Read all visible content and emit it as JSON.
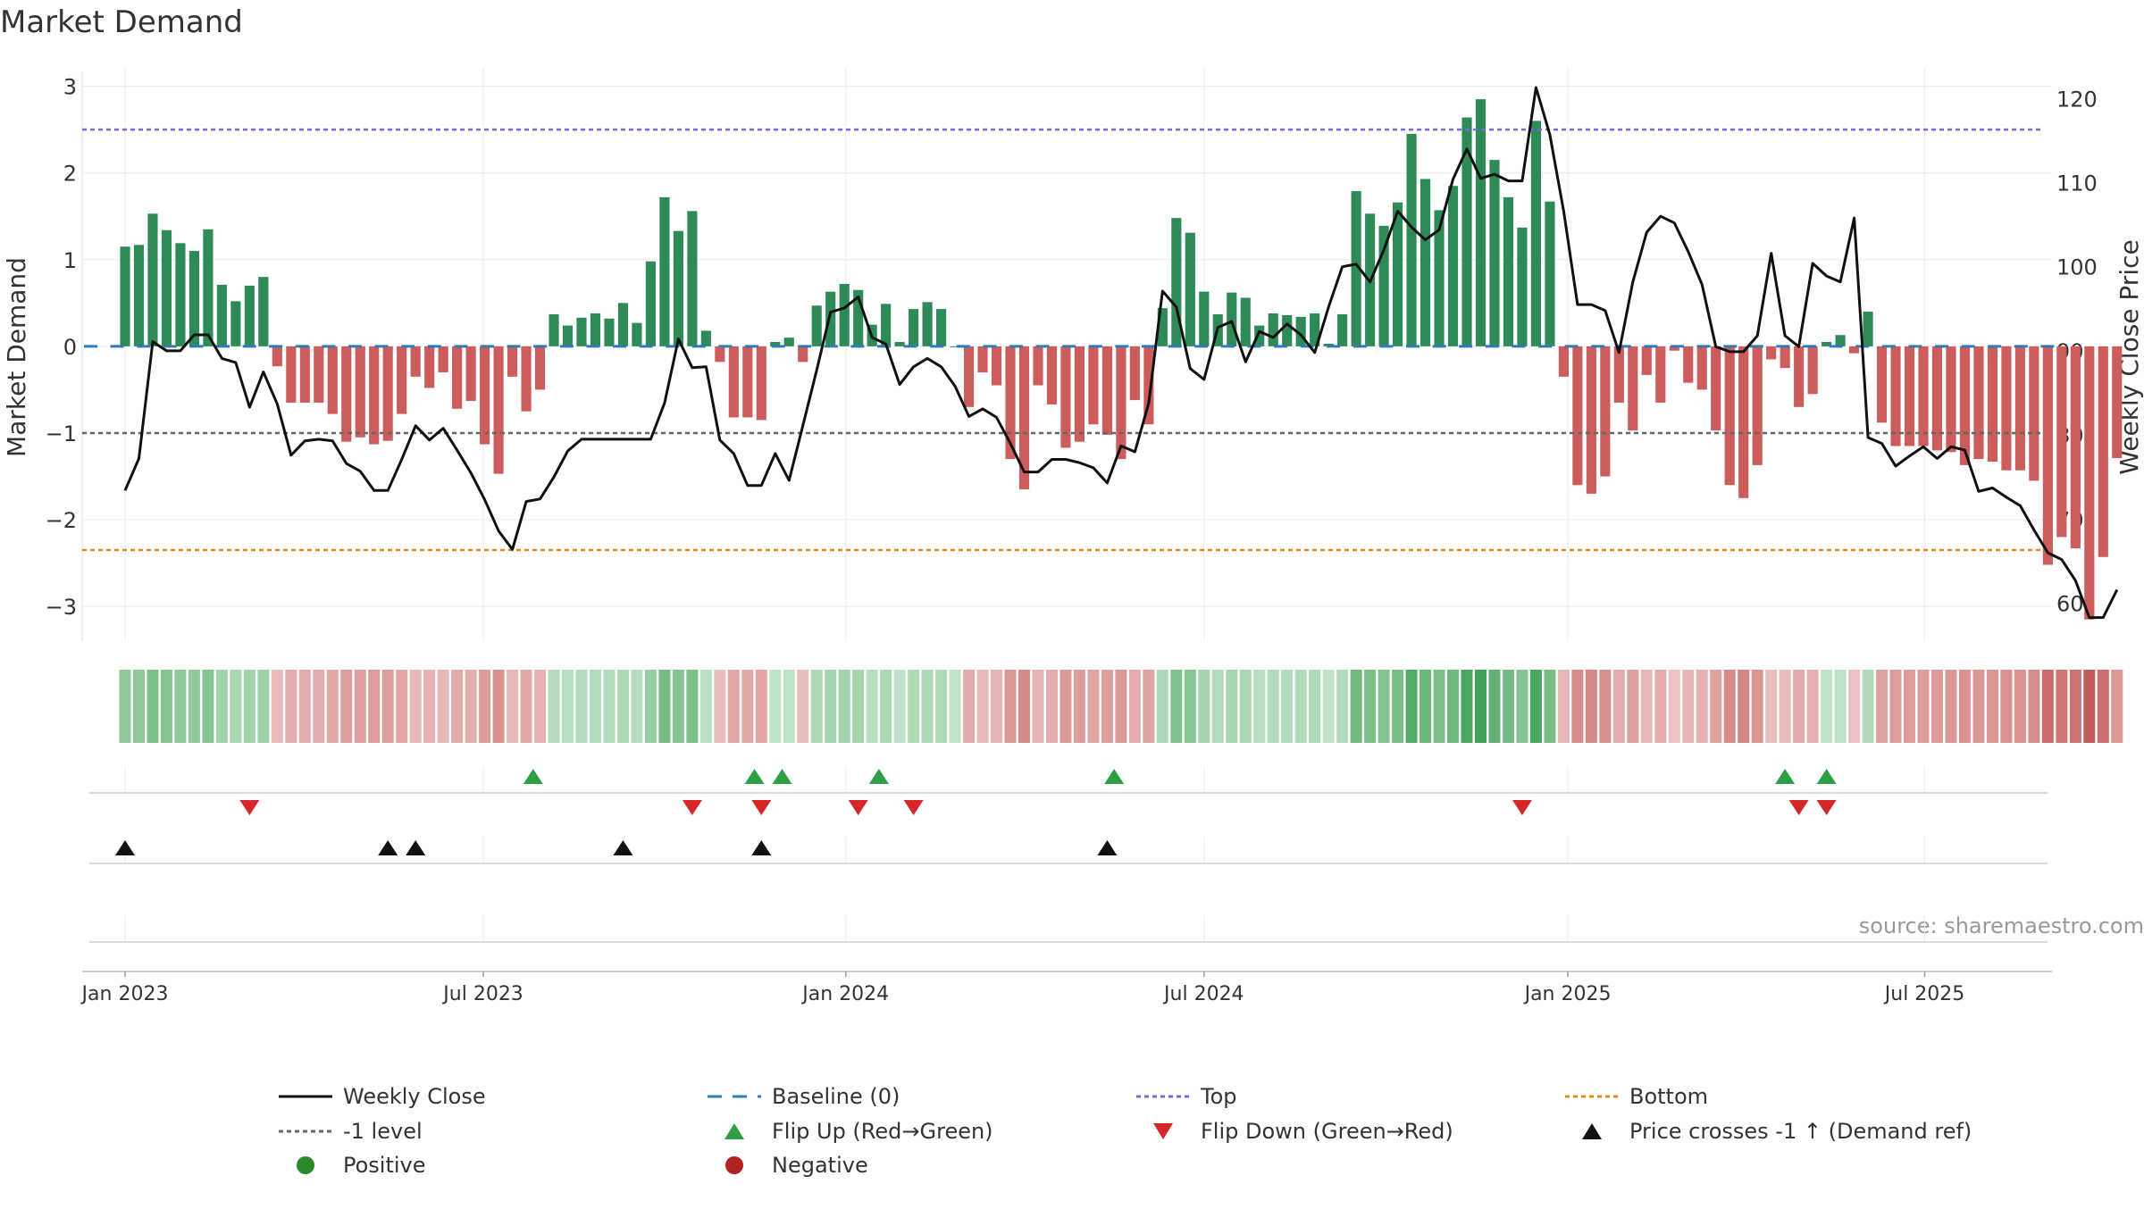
{
  "chart_data": {
    "type": "bar",
    "title": "Market Demand",
    "ylabel": "Market Demand",
    "y2label": "Weekly Close Price",
    "ylim": [
      -3.4,
      3.15
    ],
    "y2lim": [
      55.5,
      123
    ],
    "yticks": [
      3,
      2,
      1,
      0,
      -1,
      -2,
      -3
    ],
    "ytick_labels": [
      "3",
      "2",
      "1",
      "0",
      "−1",
      "−2",
      "−3"
    ],
    "y2ticks": [
      120,
      110,
      100,
      90,
      80,
      70,
      60
    ],
    "y2tick_labels": [
      "120",
      "110",
      "100",
      "90",
      "80",
      "70",
      "60"
    ],
    "xlim_weeks": [
      -3.1,
      139.3
    ],
    "xticks": [
      {
        "week": 0,
        "label": "Jan 2023"
      },
      {
        "week": 25.9,
        "label": "Jul 2023"
      },
      {
        "week": 52.1,
        "label": "Jan 2024"
      },
      {
        "week": 78,
        "label": "Jul 2024"
      },
      {
        "week": 104.3,
        "label": "Jan 2025"
      },
      {
        "week": 130.1,
        "label": "Jul 2025"
      }
    ],
    "reference_lines": {
      "top": 2.5,
      "bottom": -2.35,
      "minus_one": -1,
      "baseline": 0
    },
    "demand_values": [
      1.15,
      1.17,
      1.53,
      1.34,
      1.19,
      1.1,
      1.35,
      0.71,
      0.52,
      0.7,
      0.8,
      -0.23,
      -0.65,
      -0.65,
      -0.65,
      -0.78,
      -1.1,
      -1.05,
      -1.13,
      -1.09,
      -0.78,
      -0.35,
      -0.48,
      -0.3,
      -0.72,
      -0.63,
      -1.13,
      -1.47,
      -0.35,
      -0.75,
      -0.5,
      0.37,
      0.24,
      0.33,
      0.38,
      0.32,
      0.5,
      0.27,
      0.98,
      1.72,
      1.33,
      1.56,
      0.18,
      -0.18,
      -0.82,
      -0.82,
      -0.85,
      0.05,
      0.1,
      -0.18,
      0.47,
      0.63,
      0.72,
      0.65,
      0.25,
      0.49,
      0.05,
      0.43,
      0.51,
      0.43,
      0.0,
      -0.7,
      -0.3,
      -0.45,
      -1.3,
      -1.65,
      -0.45,
      -0.67,
      -1.17,
      -1.1,
      -0.9,
      -1.02,
      -1.3,
      -0.62,
      -0.9,
      0.44,
      1.48,
      1.31,
      0.63,
      0.37,
      0.62,
      0.56,
      0.24,
      0.38,
      0.36,
      0.34,
      0.38,
      0.03,
      0.37,
      1.79,
      1.53,
      1.39,
      1.66,
      2.45,
      1.93,
      1.57,
      1.85,
      2.64,
      2.85,
      2.15,
      1.72,
      1.37,
      2.6,
      1.67,
      -0.35,
      -1.6,
      -1.7,
      -1.5,
      -0.65,
      -0.97,
      -0.33,
      -0.65,
      -0.05,
      -0.42,
      -0.5,
      -0.97,
      -1.6,
      -1.75,
      -1.37,
      -0.15,
      -0.25,
      -0.7,
      -0.55,
      0.05,
      0.13,
      -0.08,
      0.4,
      -0.88,
      -1.15,
      -1.15,
      -1.15,
      -1.2,
      -1.22,
      -1.37,
      -1.3,
      -1.33,
      -1.43,
      -1.43,
      -1.55,
      -2.52,
      -2.2,
      -2.33,
      -3.15,
      -2.43,
      -1.29
    ],
    "series": [
      {
        "name": "Weekly Close",
        "values": [
          73.4,
          77.2,
          91.1,
          90,
          90,
          91.9,
          91.9,
          89.1,
          88.6,
          83.3,
          87.5,
          83.7,
          77.6,
          79.3,
          79.5,
          79.3,
          76.6,
          75.7,
          73.4,
          73.4,
          77.1,
          81.1,
          79.4,
          80.8,
          78.2,
          75.5,
          72.3,
          68.6,
          66.4,
          72.1,
          72.4,
          75,
          78.1,
          79.5,
          79.5,
          79.5,
          79.5,
          79.5,
          79.5,
          83.8,
          91.4,
          88,
          88.1,
          79.4,
          77.8,
          74,
          74,
          77.8,
          74.6,
          81.1,
          87.7,
          94.6,
          95.1,
          96.4,
          91.6,
          90.8,
          86,
          88.1,
          89.1,
          88.1,
          85.8,
          82.2,
          83.1,
          82.1,
          79,
          75.6,
          75.6,
          77.1,
          77.1,
          76.7,
          76.1,
          74.3,
          78.7,
          78,
          83.8,
          97.1,
          95.2,
          87.9,
          86.6,
          92.8,
          93.5,
          88.7,
          92.3,
          91.6,
          93.2,
          91.9,
          89.8,
          95.2,
          100,
          100.3,
          98.2,
          102,
          106.6,
          104.7,
          103.2,
          104.4,
          110.4,
          114,
          110.5,
          111,
          110.2,
          110.2,
          121.3,
          115.7,
          106.6,
          95.5,
          95.5,
          94.8,
          89.8,
          98.2,
          104.1,
          106,
          105.2,
          101.8,
          97.9,
          90.5,
          89.9,
          89.9,
          91.8,
          101.6,
          91.8,
          90.5,
          100.4,
          98.9,
          98.2,
          105.8,
          79.7,
          79,
          76.3,
          77.5,
          78.6,
          77.2,
          78.6,
          78.2,
          73.3,
          73.7,
          72.6,
          71.6,
          68.7,
          66,
          65.2,
          62.7,
          58.3,
          58.3,
          61.6
        ]
      },
      {
        "name": "Baseline (0)",
        "values": [
          0
        ]
      },
      {
        "name": "Top",
        "values": [
          2.5
        ]
      },
      {
        "name": "Bottom",
        "values": [
          -2.35
        ]
      },
      {
        "name": "-1 level",
        "values": [
          -1
        ]
      }
    ],
    "flip_up_weeks": [
      29.5,
      45.5,
      47.5,
      54.5,
      71.5,
      120,
      123
    ],
    "flip_down_weeks": [
      9,
      41,
      46,
      53,
      57,
      101,
      121,
      123
    ],
    "price_cross_weeks": [
      0,
      19,
      21,
      36,
      46,
      71
    ],
    "legend": [
      {
        "label": "Weekly Close",
        "kind": "line-solid",
        "color": "#111111"
      },
      {
        "label": "Baseline (0)",
        "kind": "line-dashed",
        "color": "#2e7bb6"
      },
      {
        "label": "Top",
        "kind": "line-dotted",
        "color": "#7b68d8"
      },
      {
        "label": "Bottom",
        "kind": "line-dotted",
        "color": "#e08a1e"
      },
      {
        "label": "-1 level",
        "kind": "line-dotted",
        "color": "#666666"
      },
      {
        "label": "Flip Up (Red→Green)",
        "kind": "triangle-up",
        "color": "#2ea043"
      },
      {
        "label": "Flip Down (Green→Red)",
        "kind": "triangle-down",
        "color": "#d62728"
      },
      {
        "label": "Price crosses -1 ↑ (Demand ref)",
        "kind": "triangle-up",
        "color": "#111111"
      },
      {
        "label": "Positive",
        "kind": "dot",
        "color": "#2a8a2a"
      },
      {
        "label": "Negative",
        "kind": "dot",
        "color": "#b22222"
      }
    ],
    "source": "source: sharemaestro.com"
  },
  "colors": {
    "positive_bar": "#2e8b57",
    "negative_bar": "#cd5c5c",
    "baseline": "#2e7bb6",
    "top_line": "#7b68d8",
    "bottom_line": "#e08a1e",
    "minus_one_line": "#666666",
    "price_line": "#111111",
    "flip_up": "#2ea043",
    "flip_down": "#d62728",
    "cross_marker": "#111111"
  }
}
